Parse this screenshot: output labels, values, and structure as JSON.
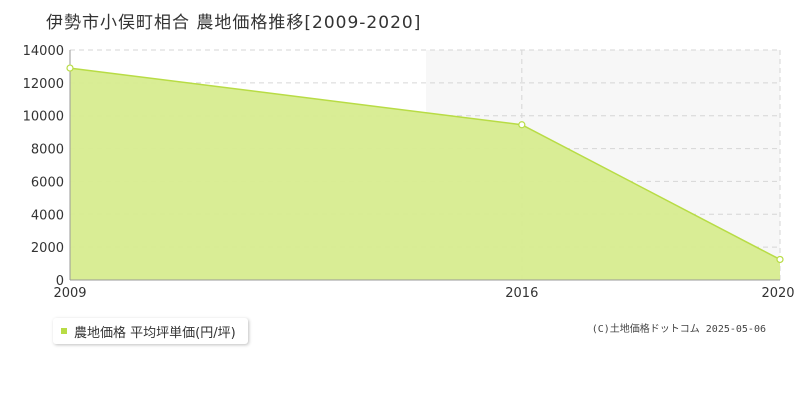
{
  "colors": {
    "fill": "#d7ec8f",
    "line": "#b8dc45",
    "marker_fill": "#ffffff",
    "legend_swatch": "#b8dc45"
  },
  "legend": {
    "label": "農地価格 平均坪単価(円/坪)"
  },
  "copyright": "(C)土地価格ドットコム 2025-05-06",
  "chart_data": {
    "type": "area",
    "title": "伊勢市小俣町相合 農地価格推移[2009-2020]",
    "x": [
      2009,
      2016,
      2020
    ],
    "x_tick_labels": [
      "2009",
      "2016",
      "2020"
    ],
    "series": [
      {
        "name": "農地価格 平均坪単価(円/坪)",
        "values": [
          12900,
          9450,
          1250
        ]
      }
    ],
    "ylim": [
      0,
      14000
    ],
    "y_ticks": [
      0,
      2000,
      4000,
      6000,
      8000,
      10000,
      12000,
      14000
    ],
    "xlim": [
      2009,
      2020
    ],
    "grid": true,
    "legend_position": "bottom-left"
  }
}
